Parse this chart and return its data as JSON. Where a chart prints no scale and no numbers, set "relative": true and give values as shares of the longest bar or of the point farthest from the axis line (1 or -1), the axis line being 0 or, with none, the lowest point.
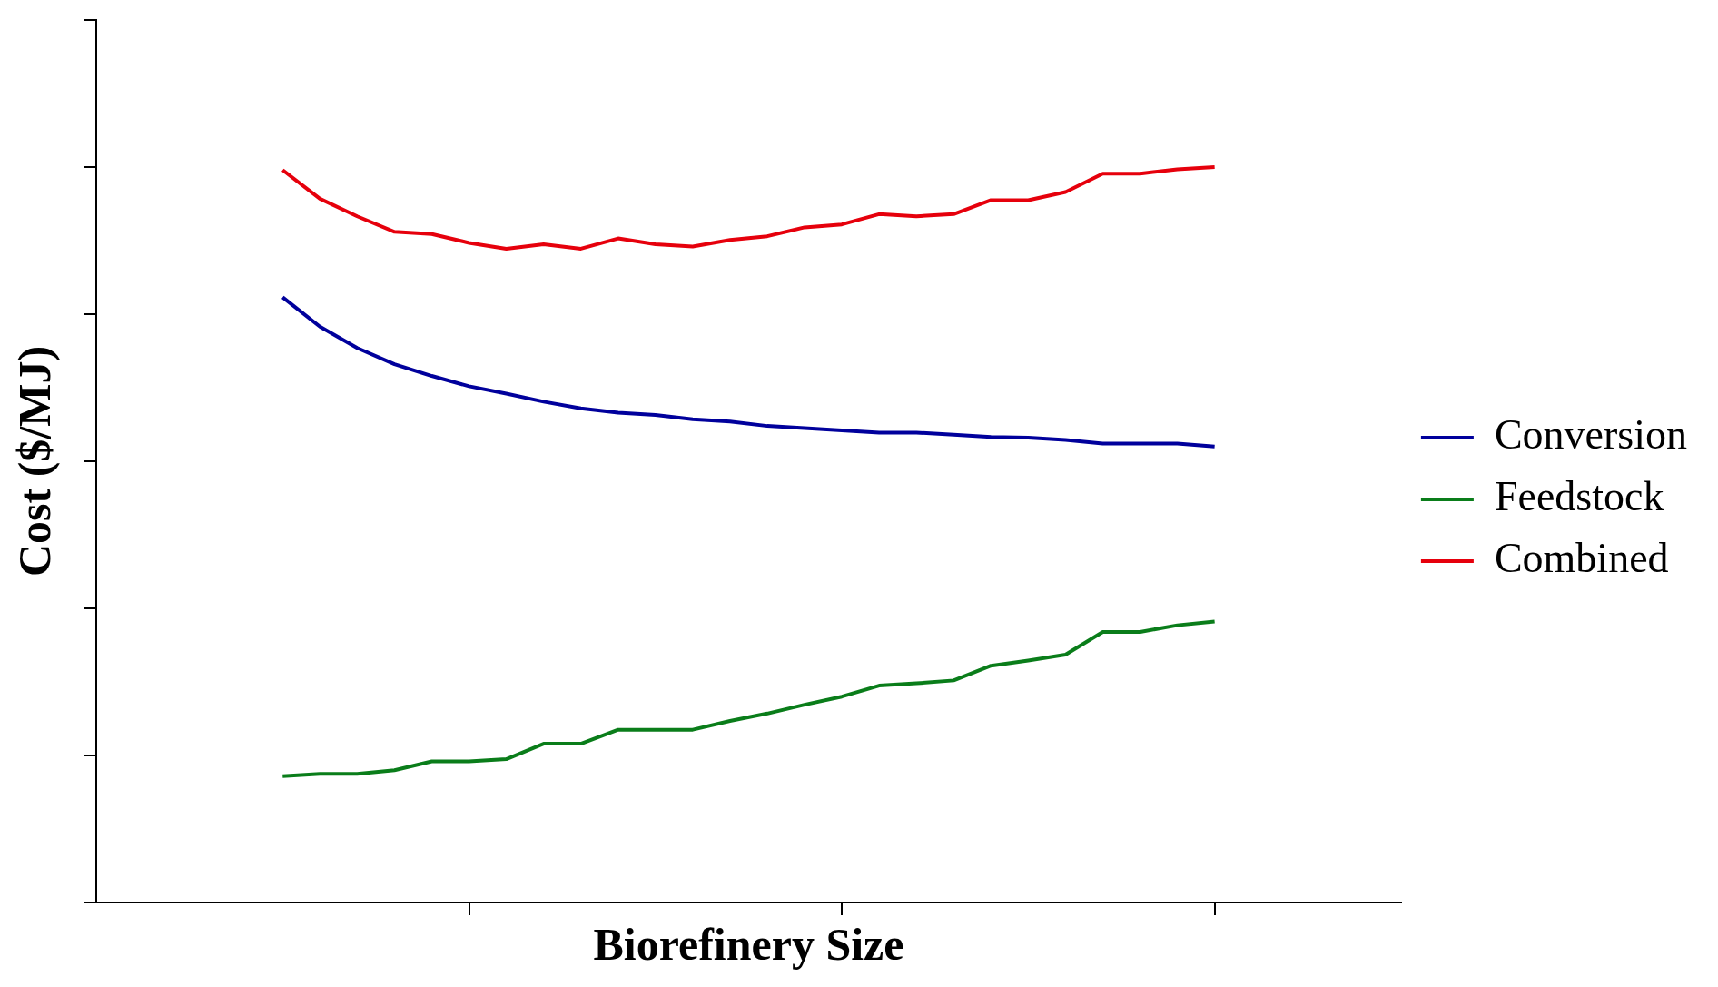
{
  "chart_data": {
    "type": "line",
    "xlabel": "Biorefinery Size",
    "ylabel": "Cost ($/MJ)",
    "relative": true,
    "legend": "right",
    "marker": "none",
    "line_style": "solid",
    "grid": false,
    "categories": [
      null,
      null,
      null,
      null,
      null,
      null,
      null,
      null,
      null,
      null,
      null,
      null,
      null,
      null,
      null,
      null,
      null,
      null,
      null,
      null,
      null,
      null,
      null,
      null,
      null,
      null
    ],
    "series": [
      {
        "name": "Conversion",
        "color": "#00009c",
        "values": [
          0.823,
          0.783,
          0.754,
          0.732,
          0.716,
          0.702,
          0.692,
          0.681,
          0.672,
          0.666,
          0.663,
          0.657,
          0.654,
          0.648,
          0.645,
          0.642,
          0.639,
          0.639,
          0.636,
          0.633,
          0.632,
          0.629,
          0.624,
          0.624,
          0.624,
          0.62
        ]
      },
      {
        "name": "Feedstock",
        "color": "#0a7d1a",
        "values": [
          0.172,
          0.175,
          0.175,
          0.18,
          0.192,
          0.192,
          0.195,
          0.216,
          0.216,
          0.235,
          0.235,
          0.235,
          0.247,
          0.257,
          0.269,
          0.28,
          0.295,
          0.298,
          0.302,
          0.322,
          0.329,
          0.337,
          0.368,
          0.368,
          0.377,
          0.382
        ]
      },
      {
        "name": "Combined",
        "color": "#e6000c",
        "values": [
          0.996,
          0.957,
          0.933,
          0.912,
          0.909,
          0.897,
          0.889,
          0.895,
          0.889,
          0.903,
          0.895,
          0.892,
          0.901,
          0.906,
          0.918,
          0.922,
          0.936,
          0.933,
          0.936,
          0.955,
          0.955,
          0.966,
          0.991,
          0.991,
          0.997,
          1.0
        ]
      }
    ]
  }
}
